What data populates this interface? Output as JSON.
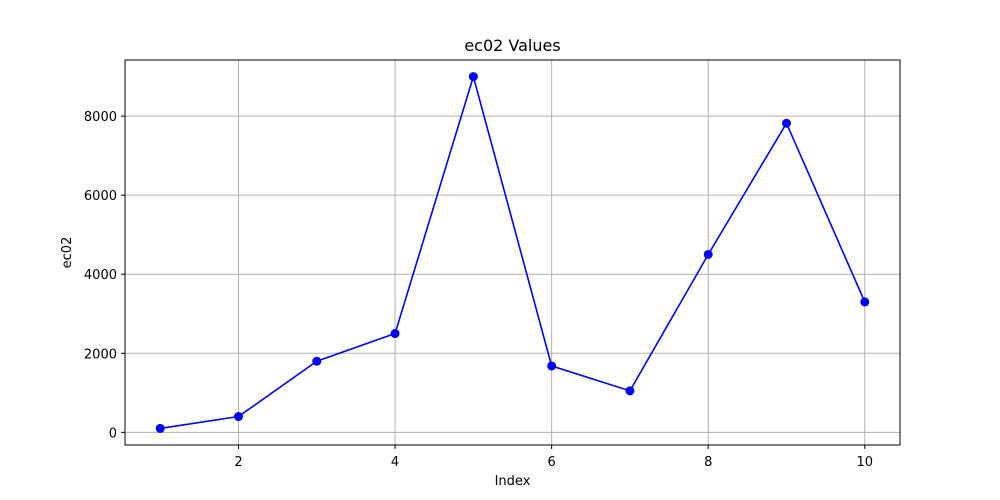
{
  "chart_data": {
    "type": "line",
    "title": "ec02 Values",
    "xlabel": "Index",
    "ylabel": "ec02",
    "x": [
      1,
      2,
      3,
      4,
      5,
      6,
      7,
      8,
      9,
      10
    ],
    "series": [
      {
        "values": [
          100,
          400,
          1800,
          2500,
          9000,
          1680,
          1050,
          4500,
          7820,
          3300
        ],
        "color": "#0000ff",
        "marker": "circle"
      }
    ],
    "xlim": [
      0.55,
      10.45
    ],
    "ylim": [
      -320,
      9420
    ],
    "xticks": [
      2,
      4,
      6,
      8,
      10
    ],
    "yticks": [
      0,
      2000,
      4000,
      6000,
      8000
    ],
    "grid": true
  }
}
